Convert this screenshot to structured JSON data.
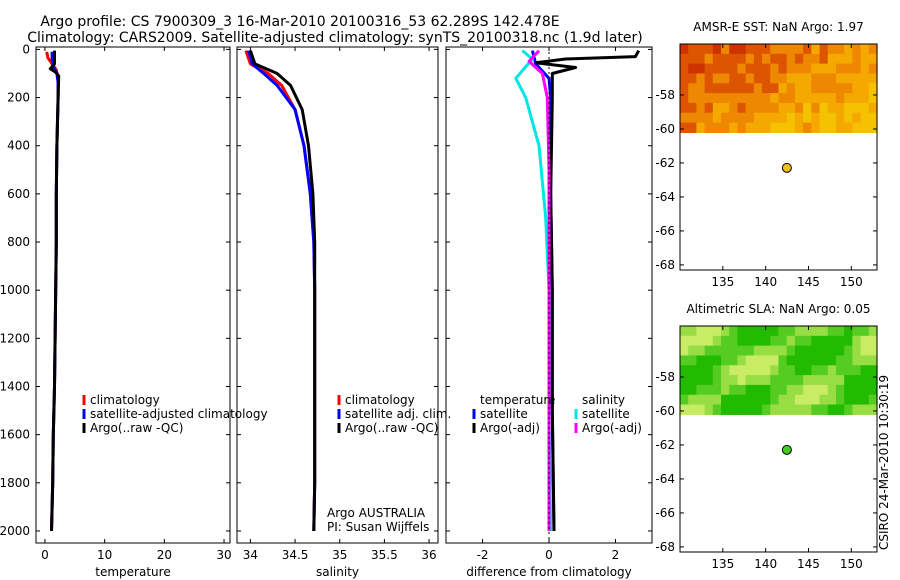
{
  "title_line1": "Argo profile: CS 7900309_3 16-Mar-2010 20100316_53 62.289S 142.478E",
  "title_line2": "Climatology: CARS2009. Satellite-adjusted climatology: synTS_20100318.nc (1.9d later)",
  "credit": "CSIRO 24-Mar-2010 10:30:19",
  "chart_data": [
    {
      "type": "line",
      "id": "temperature",
      "xlabel": "temperature",
      "xlim": [
        -1.5,
        31
      ],
      "xticks": [
        0,
        10,
        20,
        30
      ],
      "ylim": [
        2050,
        -10
      ],
      "yticks": [
        0,
        200,
        400,
        600,
        800,
        1000,
        1200,
        1400,
        1600,
        1800,
        2000
      ],
      "legend": [
        "climatology",
        "satellite-adjusted climatology",
        "Argo(..raw -QC)"
      ],
      "series": [
        {
          "name": "climatology",
          "color": "#ff0000",
          "points": [
            [
              0.3,
              10
            ],
            [
              0.5,
              35
            ],
            [
              1.2,
              60
            ],
            [
              1.9,
              85
            ],
            [
              2.2,
              120
            ],
            [
              2.2,
              200
            ],
            [
              2.0,
              400
            ],
            [
              1.9,
              600
            ],
            [
              1.9,
              800
            ],
            [
              1.8,
              1000
            ],
            [
              1.7,
              1200
            ],
            [
              1.6,
              1400
            ],
            [
              1.4,
              1600
            ],
            [
              1.3,
              1800
            ],
            [
              1.1,
              2000
            ]
          ]
        },
        {
          "name": "satellite-adjusted climatology",
          "color": "#0000ff",
          "points": [
            [
              1.2,
              10
            ],
            [
              1.2,
              40
            ],
            [
              1.4,
              70
            ],
            [
              2.0,
              100
            ],
            [
              2.2,
              140
            ],
            [
              2.2,
              200
            ],
            [
              2.0,
              400
            ],
            [
              1.9,
              600
            ],
            [
              1.9,
              800
            ],
            [
              1.8,
              1000
            ],
            [
              1.7,
              1200
            ],
            [
              1.6,
              1400
            ],
            [
              1.4,
              1600
            ],
            [
              1.3,
              1800
            ],
            [
              1.1,
              2000
            ]
          ]
        },
        {
          "name": "Argo(..raw -QC)",
          "color": "#000000",
          "points": [
            [
              1.6,
              5
            ],
            [
              1.6,
              60
            ],
            [
              0.9,
              80
            ],
            [
              1.8,
              95
            ],
            [
              2.3,
              110
            ],
            [
              2.2,
              200
            ],
            [
              2.0,
              400
            ],
            [
              1.9,
              600
            ],
            [
              1.9,
              800
            ],
            [
              1.8,
              1000
            ],
            [
              1.7,
              1200
            ],
            [
              1.6,
              1400
            ],
            [
              1.4,
              1600
            ],
            [
              1.3,
              1800
            ],
            [
              1.1,
              2000
            ]
          ]
        }
      ]
    },
    {
      "type": "line",
      "id": "salinity",
      "xlabel": "salinity",
      "xlim": [
        33.85,
        36.1
      ],
      "xticks": [
        34,
        34.5,
        35,
        35.5,
        36
      ],
      "xticklabels": [
        "34",
        "34.5",
        "35",
        "35.5",
        "36"
      ],
      "ylim": [
        2050,
        -10
      ],
      "legend": [
        "climatology",
        "satellite adj. clim.",
        "Argo(..raw -QC)"
      ],
      "annotations": [
        "Argo AUSTRALIA",
        "PI: Susan Wijffels"
      ],
      "series": [
        {
          "name": "climatology",
          "color": "#ff0000",
          "points": [
            [
              33.95,
              5
            ],
            [
              34.0,
              60
            ],
            [
              34.2,
              100
            ],
            [
              34.35,
              150
            ],
            [
              34.5,
              250
            ],
            [
              34.6,
              400
            ],
            [
              34.67,
              600
            ],
            [
              34.71,
              800
            ],
            [
              34.72,
              1000
            ],
            [
              34.72,
              1200
            ],
            [
              34.72,
              1400
            ],
            [
              34.72,
              1600
            ],
            [
              34.72,
              1800
            ],
            [
              34.71,
              2000
            ]
          ]
        },
        {
          "name": "satellite adj. clim.",
          "color": "#0000ff",
          "points": [
            [
              33.98,
              5
            ],
            [
              34.02,
              60
            ],
            [
              34.15,
              100
            ],
            [
              34.3,
              150
            ],
            [
              34.5,
              250
            ],
            [
              34.6,
              400
            ],
            [
              34.67,
              600
            ],
            [
              34.71,
              800
            ],
            [
              34.72,
              1000
            ],
            [
              34.72,
              1200
            ],
            [
              34.72,
              1400
            ],
            [
              34.72,
              1600
            ],
            [
              34.72,
              1800
            ],
            [
              34.71,
              2000
            ]
          ]
        },
        {
          "name": "Argo(..raw -QC)",
          "color": "#000000",
          "points": [
            [
              34.0,
              5
            ],
            [
              34.05,
              60
            ],
            [
              34.3,
              100
            ],
            [
              34.45,
              150
            ],
            [
              34.58,
              250
            ],
            [
              34.65,
              400
            ],
            [
              34.7,
              600
            ],
            [
              34.72,
              800
            ],
            [
              34.72,
              1000
            ],
            [
              34.72,
              1200
            ],
            [
              34.72,
              1400
            ],
            [
              34.72,
              1600
            ],
            [
              34.72,
              1800
            ],
            [
              34.71,
              2000
            ]
          ]
        }
      ]
    },
    {
      "type": "line",
      "id": "difference",
      "xlabel": "difference from climatology",
      "xlim": [
        -3.1,
        3.1
      ],
      "xticks": [
        -2,
        0,
        2
      ],
      "ylim": [
        2050,
        -10
      ],
      "legend_headers": [
        "temperature",
        "salinity"
      ],
      "legend_temperature": [
        "satellite",
        "Argo(-adj)"
      ],
      "legend_salinity": [
        "satellite",
        "Argo(-adj)"
      ],
      "series": [
        {
          "name": "temperature satellite",
          "color": "#0000ff",
          "points": [
            [
              -0.5,
              5
            ],
            [
              -0.4,
              60
            ],
            [
              -0.2,
              90
            ],
            [
              0,
              120
            ],
            [
              0.05,
              200
            ],
            [
              0.05,
              600
            ],
            [
              0.1,
              1000
            ],
            [
              0.1,
              1500
            ],
            [
              0.15,
              2000
            ]
          ]
        },
        {
          "name": "temperature Argo(-adj)",
          "color": "#000000",
          "points": [
            [
              2.7,
              5
            ],
            [
              2.6,
              30
            ],
            [
              0.5,
              40
            ],
            [
              -0.4,
              55
            ],
            [
              0.8,
              75
            ],
            [
              0.1,
              100
            ],
            [
              0.1,
              200
            ],
            [
              0.05,
              600
            ],
            [
              0.1,
              1000
            ],
            [
              0.1,
              1500
            ],
            [
              0.15,
              2000
            ]
          ]
        },
        {
          "name": "salinity satellite",
          "color": "#00e5e5",
          "points": [
            [
              -0.8,
              5
            ],
            [
              -0.5,
              40
            ],
            [
              -1.0,
              120
            ],
            [
              -0.7,
              200
            ],
            [
              -0.3,
              400
            ],
            [
              -0.1,
              700
            ],
            [
              0,
              1000
            ],
            [
              0,
              1500
            ],
            [
              0.05,
              2000
            ]
          ]
        },
        {
          "name": "salinity Argo(-adj)",
          "color": "#ff00ff",
          "points": [
            [
              -0.3,
              5
            ],
            [
              -0.6,
              50
            ],
            [
              -0.2,
              100
            ],
            [
              -0.05,
              200
            ],
            [
              0,
              500
            ],
            [
              0,
              1000
            ],
            [
              0,
              1500
            ],
            [
              0,
              2000
            ]
          ]
        }
      ]
    },
    {
      "type": "heatmap",
      "id": "sst",
      "title": "AMSR-E SST: NaN Argo: 1.97",
      "xlim": [
        130,
        153
      ],
      "ylim": [
        -68.3,
        -55
      ],
      "xticks": [
        135,
        140,
        145,
        150
      ],
      "yticks": [
        -58,
        -60,
        -62,
        -64,
        -66,
        -68
      ],
      "data_extent_lat": [
        -60.2,
        -55
      ],
      "colors": [
        "#cc3300",
        "#dd5500",
        "#ee8800",
        "#f5a800",
        "#f6c200"
      ],
      "argo_point": {
        "lon": 142.478,
        "lat": -62.289,
        "color": "#f0c020"
      }
    },
    {
      "type": "heatmap",
      "id": "sla",
      "title": "Altimetric SLA: NaN Argo: 0.05",
      "xlim": [
        130,
        153
      ],
      "ylim": [
        -68.3,
        -55
      ],
      "xticks": [
        135,
        140,
        145,
        150
      ],
      "yticks": [
        -58,
        -60,
        -62,
        -64,
        -66,
        -68
      ],
      "data_extent_lat": [
        -60.2,
        -55
      ],
      "colors": [
        "#22bb00",
        "#55cc22",
        "#99dd44",
        "#c8ec66"
      ],
      "argo_point": {
        "lon": 142.478,
        "lat": -62.289,
        "color": "#44cc22"
      }
    }
  ]
}
